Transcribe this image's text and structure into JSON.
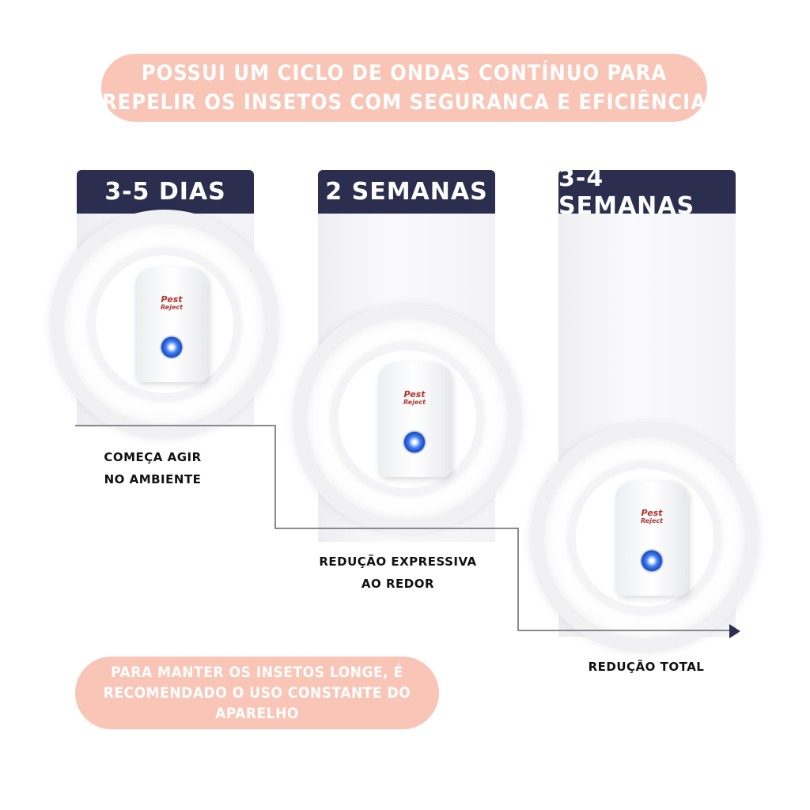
{
  "banner_top": [
    "POSSUI UM CICLO DE ONDAS CONTÍNUO PARA",
    "REPELIR OS INSETOS COM SEGURANCA E EFICIÊNCIA"
  ],
  "stages": [
    {
      "title": "3-5 DIAS",
      "caption": [
        "COMEÇA AGIR",
        "NO AMBIENTE"
      ]
    },
    {
      "title": "2 SEMANAS",
      "caption": [
        "REDUÇÃO EXPRESSIVA",
        "AO REDOR"
      ]
    },
    {
      "title": "3-4 SEMANAS",
      "caption": [
        "REDUÇÃO TOTAL"
      ]
    }
  ],
  "device_logo": {
    "line1": "Pest",
    "line2": "Reject"
  },
  "banner_bottom": [
    "PARA MANTER OS INSETOS LONGE, É",
    "RECOMENDADO O USO CONSTANTE DO",
    "APARELHO"
  ],
  "colors": {
    "pill": "#f8c5b6",
    "header": "#2b2e4f",
    "led": "#2f6be0"
  }
}
